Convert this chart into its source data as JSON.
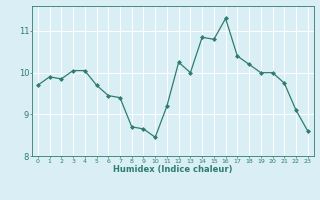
{
  "x": [
    0,
    1,
    2,
    3,
    4,
    5,
    6,
    7,
    8,
    9,
    10,
    11,
    12,
    13,
    14,
    15,
    16,
    17,
    18,
    19,
    20,
    21,
    22,
    23
  ],
  "y": [
    9.7,
    9.9,
    9.85,
    10.05,
    10.05,
    9.7,
    9.45,
    9.4,
    8.7,
    8.65,
    8.45,
    9.2,
    10.25,
    10.0,
    10.85,
    10.8,
    11.3,
    10.4,
    10.2,
    10.0,
    10.0,
    9.75,
    9.1,
    8.6
  ],
  "line_color": "#2e7d6e",
  "marker": "D",
  "marker_size": 2.0,
  "linewidth": 0.9,
  "xlabel": "Humidex (Indice chaleur)",
  "xlabel_fontsize": 6.0,
  "xlim": [
    -0.5,
    23.5
  ],
  "ylim": [
    8.0,
    11.6
  ],
  "yticks": [
    8,
    9,
    10,
    11
  ],
  "xticks": [
    0,
    1,
    2,
    3,
    4,
    5,
    6,
    7,
    8,
    9,
    10,
    11,
    12,
    13,
    14,
    15,
    16,
    17,
    18,
    19,
    20,
    21,
    22,
    23
  ],
  "xtick_fontsize": 4.5,
  "ytick_fontsize": 6.0,
  "bg_color": "#d9eff5",
  "grid_color": "#ffffff",
  "grid_linewidth": 0.7,
  "tick_color": "#2e7d6e",
  "axis_color": "#2e7d6e"
}
